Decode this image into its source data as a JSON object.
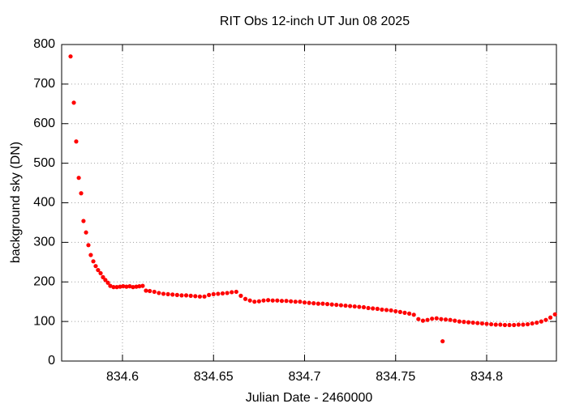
{
  "chart_data": {
    "type": "scatter",
    "title": "RIT Obs 12-inch UT Jun 08 2025",
    "xlabel": "Julian Date - 2460000",
    "ylabel": "background sky (DN)",
    "color": "#ff0000",
    "grid": true,
    "xlim": [
      834.5666,
      834.8383
    ],
    "ylim": [
      0,
      800
    ],
    "xticks": [
      834.6,
      834.65,
      834.7,
      834.75,
      834.8
    ],
    "yticks": [
      0,
      100,
      200,
      300,
      400,
      500,
      600,
      700,
      800
    ],
    "x": [
      834.5715,
      834.5733,
      834.5746,
      834.576,
      834.5773,
      834.5786,
      834.58,
      834.5813,
      834.5826,
      834.584,
      834.5853,
      834.5866,
      834.588,
      834.5893,
      834.5906,
      834.592,
      834.5933,
      834.5951,
      834.5969,
      834.5987,
      834.6004,
      834.6022,
      834.604,
      834.6058,
      834.6076,
      834.6093,
      834.6111,
      834.6129,
      834.615,
      834.6175,
      834.62,
      834.6225,
      834.625,
      834.6275,
      834.63,
      834.6325,
      834.635,
      834.6375,
      834.64,
      834.6425,
      834.645,
      834.6475,
      834.65,
      834.6525,
      834.655,
      834.6575,
      834.66,
      834.6625,
      834.665,
      834.6675,
      834.67,
      834.6725,
      834.675,
      834.6775,
      834.68,
      834.6825,
      834.685,
      834.6875,
      834.69,
      834.6925,
      834.695,
      834.6975,
      834.7,
      834.7025,
      834.705,
      834.7075,
      834.71,
      834.7125,
      834.715,
      834.7175,
      834.72,
      834.7225,
      834.725,
      834.7275,
      834.73,
      834.7325,
      834.735,
      834.7375,
      834.74,
      834.7425,
      834.745,
      834.7475,
      834.75,
      834.7525,
      834.755,
      834.7575,
      834.76,
      834.7625,
      834.765,
      834.7675,
      834.77,
      834.7725,
      834.775,
      834.7758,
      834.7775,
      834.78,
      834.7825,
      834.785,
      834.7875,
      834.79,
      834.7925,
      834.795,
      834.7975,
      834.8,
      834.8025,
      834.805,
      834.8075,
      834.81,
      834.8125,
      834.815,
      834.8175,
      834.82,
      834.8225,
      834.825,
      834.8275,
      834.83,
      834.8325,
      834.835,
      834.8375
    ],
    "y": [
      770,
      653,
      555,
      463,
      424,
      354,
      325,
      293,
      268,
      252,
      240,
      230,
      222,
      212,
      205,
      198,
      190,
      187,
      187,
      188,
      189,
      188,
      189,
      187,
      188,
      189,
      190,
      178,
      177,
      175,
      172,
      170,
      169,
      168,
      167,
      166,
      166,
      165,
      164,
      163,
      163,
      167,
      169,
      170,
      171,
      172,
      174,
      175,
      165,
      157,
      153,
      150,
      151,
      153,
      154,
      153,
      153,
      152,
      152,
      151,
      150,
      150,
      148,
      147,
      146,
      145,
      145,
      144,
      143,
      142,
      141,
      140,
      139,
      138,
      137,
      136,
      134,
      133,
      132,
      130,
      129,
      128,
      126,
      124,
      122,
      120,
      117,
      106,
      102,
      104,
      107,
      108,
      106,
      50,
      105,
      104,
      102,
      100,
      99,
      98,
      97,
      96,
      95,
      94,
      93,
      92,
      92,
      91,
      91,
      91,
      92,
      92,
      93,
      95,
      97,
      100,
      104,
      110,
      118
    ]
  }
}
